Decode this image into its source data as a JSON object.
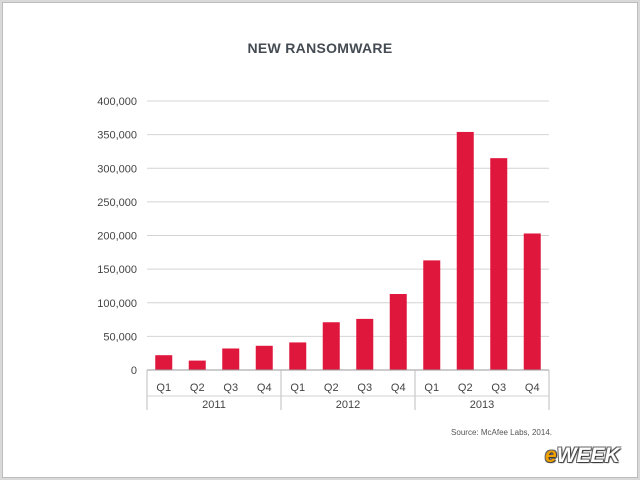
{
  "chart_data": {
    "type": "bar",
    "title": "NEW RANSOMWARE",
    "categories": [
      "Q1",
      "Q2",
      "Q3",
      "Q4",
      "Q1",
      "Q2",
      "Q3",
      "Q4",
      "Q1",
      "Q2",
      "Q3",
      "Q4"
    ],
    "groups": [
      {
        "label": "2011",
        "count": 4
      },
      {
        "label": "2012",
        "count": 4
      },
      {
        "label": "2013",
        "count": 4
      }
    ],
    "values": [
      22000,
      14000,
      32000,
      36000,
      41000,
      71000,
      76000,
      113000,
      163000,
      354000,
      315000,
      203000
    ],
    "yticks": [
      "400,000",
      "350,000",
      "300,000",
      "250,000",
      "200,000",
      "150,000",
      "100,000",
      "50,000",
      "0"
    ],
    "ylim": [
      0,
      400000
    ],
    "grid": true,
    "bar_color": "#e0173d"
  },
  "source": "Source: McAfee Labs, 2014.",
  "logo": {
    "first": "e",
    "rest": "WEEK"
  }
}
